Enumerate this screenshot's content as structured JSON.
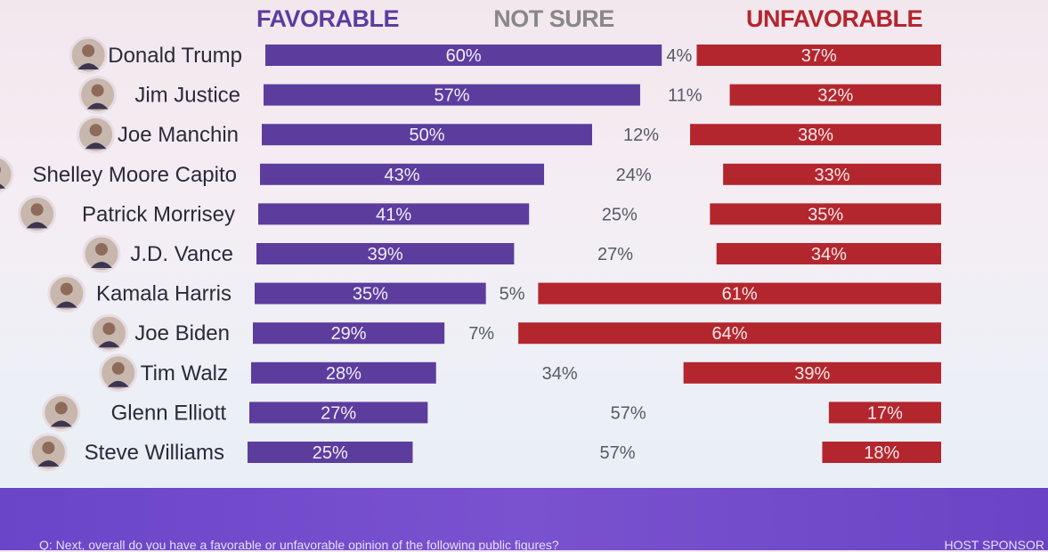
{
  "chart_data": {
    "type": "bar",
    "orientation": "horizontal",
    "stacked": true,
    "columns": [
      "FAVORABLE",
      "NOT SURE",
      "UNFAVORABLE"
    ],
    "colors": {
      "favorable": "#5c3d9e",
      "not_sure": "#888888",
      "unfavorable": "#b3262e"
    },
    "categories": [
      "Donald Trump",
      "Jim Justice",
      "Joe Manchin",
      "Shelley Moore Capito",
      "Patrick Morrisey",
      "J.D. Vance",
      "Kamala Harris",
      "Joe Biden",
      "Tim Walz",
      "Glenn Elliott",
      "Steve Williams"
    ],
    "series": [
      {
        "name": "FAVORABLE",
        "values": [
          60,
          57,
          50,
          43,
          41,
          39,
          35,
          29,
          28,
          27,
          25
        ]
      },
      {
        "name": "NOT SURE",
        "values": [
          4,
          11,
          12,
          24,
          25,
          27,
          5,
          7,
          34,
          57,
          57
        ]
      },
      {
        "name": "UNFAVORABLE",
        "values": [
          37,
          32,
          38,
          33,
          35,
          34,
          61,
          64,
          39,
          17,
          18
        ]
      }
    ],
    "value_suffix": "%"
  },
  "footer": {
    "question": "Q: Next, overall do you have a favorable or unfavorable opinion of the following public figures?",
    "sponsor": "HOST SPONSOR"
  }
}
